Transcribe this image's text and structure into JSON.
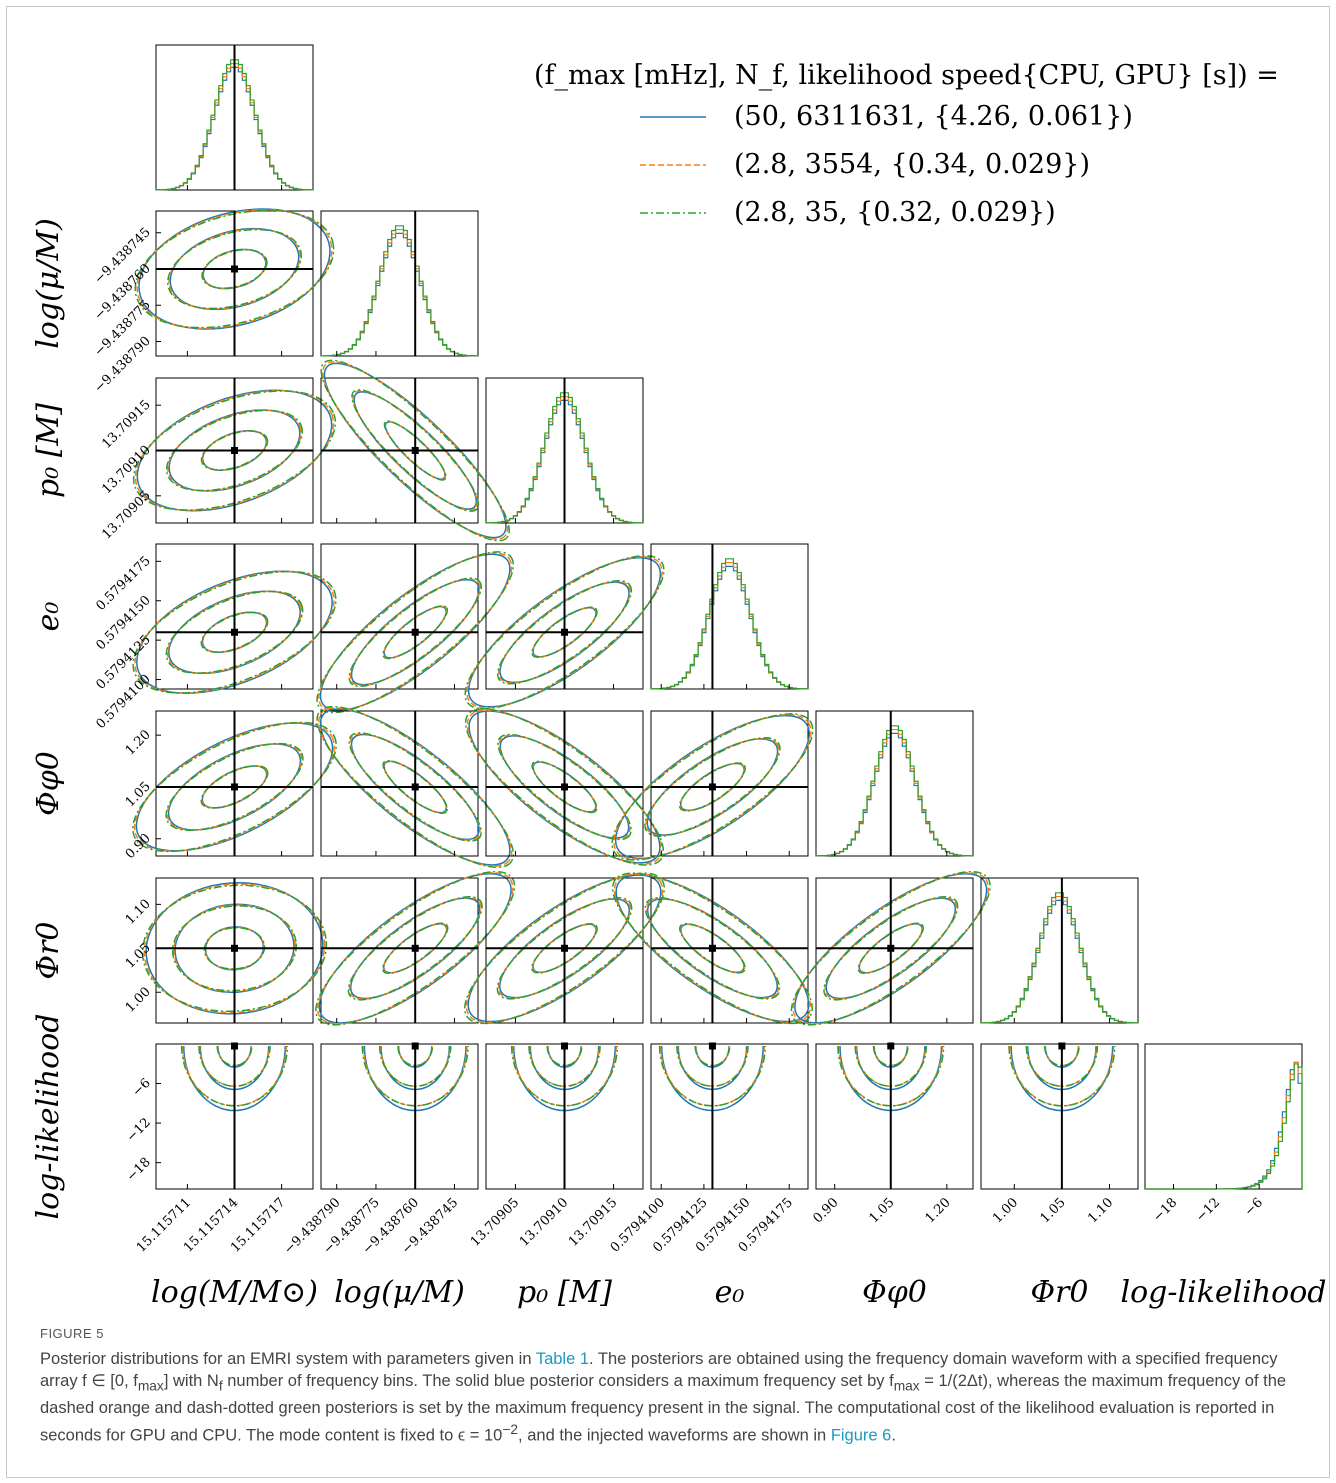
{
  "chart_data": {
    "type": "corner",
    "legend": {
      "header": "(f_max [mHz], N_f, likelihood speed{CPU, GPU} [s]) =",
      "entries": [
        {
          "label": "(50, 6311631, {4.26, 0.061})",
          "color": "#1f77b4",
          "style": "solid"
        },
        {
          "label": "(2.8, 3554, {0.34, 0.029})",
          "color": "#ff7f0e",
          "style": "dashed"
        },
        {
          "label": "(2.8, 35, {0.32, 0.029})",
          "color": "#2ca02c",
          "style": "dashdot"
        }
      ]
    },
    "parameters": [
      {
        "label": "log(M/M⊙)",
        "ylabel": "",
        "truth": 15.115714,
        "range": [
          15.115709,
          15.115719
        ],
        "ticks": [
          15.115711,
          15.115714,
          15.115717
        ],
        "ticklabels": [
          "15.115711",
          "15.115714",
          "15.115717"
        ]
      },
      {
        "label": "log(μ/M)",
        "ylabel": "log(μ/M)",
        "truth": -9.43876,
        "range": [
          -9.438796,
          -9.438736
        ],
        "ticks": [
          -9.43879,
          -9.438775,
          -9.43876,
          -9.438745
        ],
        "ticklabels": [
          "−9.438790",
          "−9.438775",
          "−9.438760",
          "−9.438745"
        ]
      },
      {
        "label": "p₀ [M]",
        "ylabel": "p₀ [M]",
        "truth": 13.7091,
        "range": [
          13.70902,
          13.70918
        ],
        "ticks": [
          13.70905,
          13.7091,
          13.70915
        ],
        "ticklabels": [
          "13.70905",
          "13.70910",
          "13.70915"
        ]
      },
      {
        "label": "e₀",
        "ylabel": "e₀",
        "truth": 0.579413,
        "range": [
          0.5794094,
          0.5794186
        ],
        "ticks": [
          0.57941,
          0.5794125,
          0.579415,
          0.5794175
        ],
        "ticklabels": [
          "0.5794100",
          "0.5794125",
          "0.5794150",
          "0.5794175"
        ]
      },
      {
        "label": "Φφ0",
        "ylabel": "Φφ0",
        "truth": 1.05,
        "range": [
          0.85,
          1.27
        ],
        "ticks": [
          0.9,
          1.05,
          1.2
        ],
        "ticklabels": [
          "0.90",
          "1.05",
          "1.20"
        ]
      },
      {
        "label": "Φr0",
        "ylabel": "Φr0",
        "truth": 1.05,
        "range": [
          0.965,
          1.13
        ],
        "ticks": [
          1.0,
          1.05,
          1.1
        ],
        "ticklabels": [
          "1.00",
          "1.05",
          "1.10"
        ]
      },
      {
        "label": "log-likelihood",
        "ylabel": "log-likelihood",
        "truth": 0,
        "range": [
          -22,
          0
        ],
        "ticks": [
          -18,
          -12,
          -6
        ],
        "ticklabels": [
          "−18",
          "−12",
          "−6"
        ]
      }
    ],
    "correlations": [
      [
        0,
        0,
        0,
        0,
        0,
        0,
        0
      ],
      [
        -0.35,
        0,
        0,
        0,
        0,
        0,
        0
      ],
      [
        -0.45,
        0.97,
        0,
        0,
        0,
        0,
        0
      ],
      [
        -0.5,
        -0.85,
        -0.8,
        0,
        0,
        0,
        0
      ],
      [
        -0.6,
        0.85,
        0.82,
        -0.75,
        0,
        0,
        0
      ],
      [
        -0.1,
        -0.8,
        -0.78,
        0.78,
        -0.8,
        0,
        0
      ],
      [
        0,
        0,
        0,
        0,
        0,
        0,
        0
      ]
    ],
    "grid": false,
    "legend_position": "top-right"
  },
  "caption": {
    "label": "FIGURE 5",
    "part1": "Posterior distributions for an EMRI system with parameters given in ",
    "link1": "Table 1",
    "part2": ". The posteriors are obtained using the frequency domain waveform with a specified frequency array f ∈ [0, f",
    "sub_max1": "max",
    "part3": "] with N",
    "sub_f": "f",
    "part4": " number of frequency bins. The solid blue posterior considers a maximum frequency set by f",
    "sub_max2": "max",
    "part5": " = 1/(2Δt), whereas the maximum frequency of the dashed orange and dash-dotted green posteriors is set by the maximum frequency present in the signal. The computational cost of the likelihood evaluation is reported in seconds for GPU and CPU. The mode content is fixed to ϵ = 10",
    "sup_exp": "−2",
    "part6": ", and the injected waveforms are shown in ",
    "link2": "Figure 6",
    "part7": "."
  }
}
